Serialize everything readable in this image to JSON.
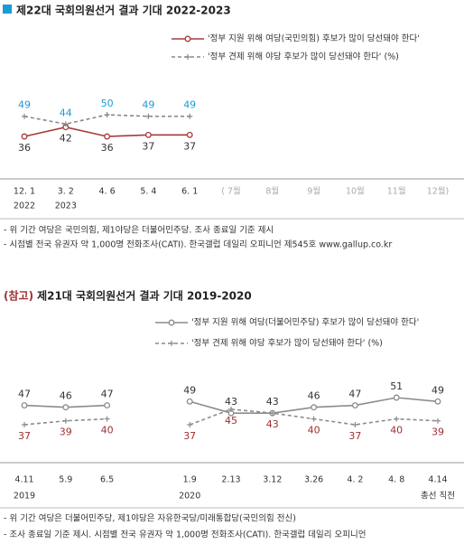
{
  "chart_data": [
    {
      "type": "line",
      "title": "제22대 국회의원선거 결과 기대 2022-2023",
      "categories": [
        "12. 1",
        "3. 2",
        "4. 6",
        "5. 4",
        "6. 1",
        "( 7월",
        "8월",
        "9월",
        "10월",
        "11월",
        "12월)"
      ],
      "sublabels": [
        "2022",
        "2023",
        null,
        null,
        null,
        null,
        null,
        null,
        null,
        null,
        null
      ],
      "series": [
        {
          "name": "'정부 지원 위해 여당(국민의힘) 후보가 많이 당선돼야 한다'",
          "color": "#a83a3a",
          "label_color": "#333333",
          "dash": false,
          "marker": "circle",
          "label_side": "below",
          "values": [
            36,
            42,
            36,
            37,
            37,
            null,
            null,
            null,
            null,
            null,
            null
          ]
        },
        {
          "name": "'정부 견제 위해 야당 후보가 많이 당선돼야 한다' (%)",
          "color": "#888888",
          "label_color": "#1a9bd7",
          "dash": true,
          "marker": "plus",
          "label_side": "above",
          "values": [
            49,
            44,
            50,
            49,
            49,
            null,
            null,
            null,
            null,
            null,
            null
          ]
        }
      ],
      "notes": [
        "- 위 기간 여당은 국민의힘, 제1야당은 더불어민주당. 조사 종료일 기준 제시",
        "- 시점별 전국 유권자 약 1,000명 전화조사(CATI). 한국갤럽 데일리 오피니언 제545호 www.gallup.co.kr"
      ]
    },
    {
      "type": "line",
      "title_prefix": "(참고)",
      "title": "제21대 국회의원선거 결과 기대 2019-2020",
      "categories": [
        "4.11",
        "5.9",
        "6.5",
        null,
        "1.9",
        "2.13",
        "3.12",
        "3.26",
        "4. 2",
        "4. 8",
        "4.14"
      ],
      "sublabels": [
        "2019",
        null,
        null,
        null,
        "2020",
        null,
        null,
        null,
        null,
        null,
        "총선 직전"
      ],
      "series": [
        {
          "name": "'정부 지원 위해 여당(더불어민주당) 후보가 많이 당선돼야 한다'",
          "color": "#8c8c8c",
          "label_color": "#333333",
          "dash": false,
          "marker": "circle",
          "label_side": "above",
          "values": [
            47,
            46,
            47,
            null,
            49,
            43,
            43,
            46,
            47,
            51,
            49
          ]
        },
        {
          "name": "'정부 견제 위해 야당 후보가 많이 당선돼야 한다' (%)",
          "color": "#8c8c8c",
          "label_color": "#a03030",
          "dash": true,
          "marker": "plus",
          "label_side": "below",
          "values": [
            37,
            39,
            40,
            null,
            37,
            45,
            43,
            40,
            37,
            40,
            39
          ]
        }
      ],
      "notes": [
        "- 위 기간 여당은 더불어민주당, 제1야당은 자유한국당/미래통합당(국민의힘 전신)",
        "- 조사 종료일 기준 제시. 시점별 전국 유권자 약 1,000명 전화조사(CATI). 한국갤럽 데일리 오피니언"
      ]
    }
  ]
}
